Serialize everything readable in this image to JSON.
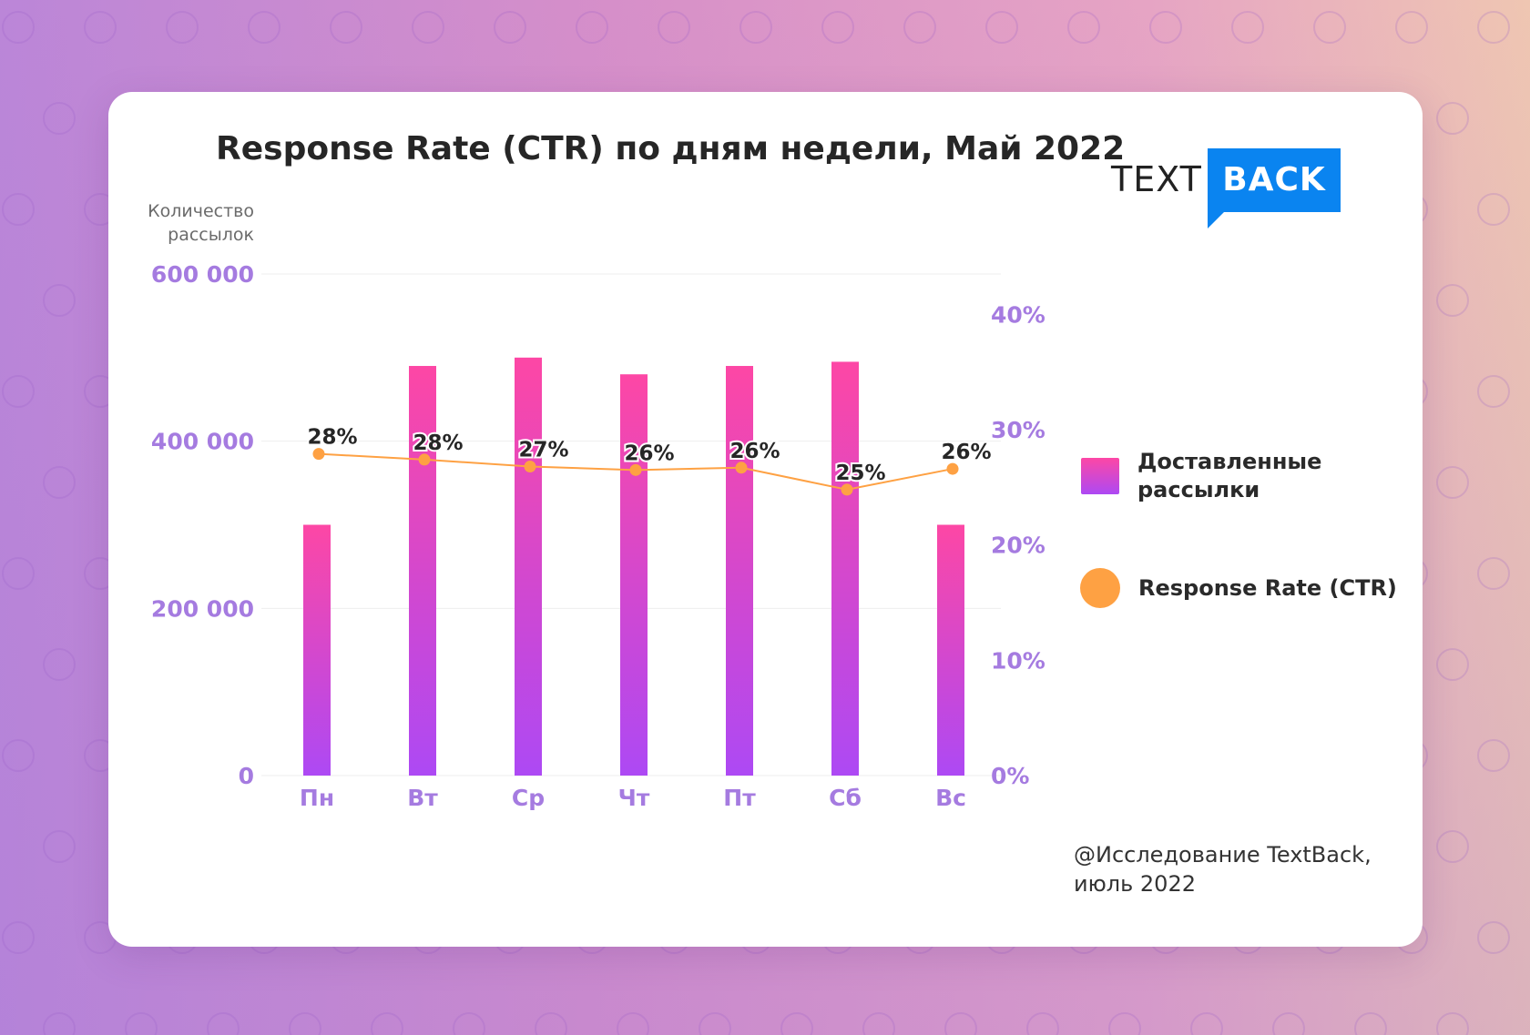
{
  "colors": {
    "bar_top": "#fd47a5",
    "bar_bottom": "#ad49f4",
    "line": "#fea143",
    "axis_label": "#a57be0",
    "grid": "#eeeeee",
    "label_dark": "#262626",
    "logo_blue": "#0a84f0"
  },
  "logo": {
    "text_part": "TEXT",
    "box_part": "BACK"
  },
  "source": {
    "line1": "@Исследование TextBack,",
    "line2": "июль 2022"
  },
  "chart_data": {
    "type": "bar",
    "title": "Response Rate (CTR) по дням недели, Май 2022",
    "ylabel": "Количество рассылок",
    "categories": [
      "Пн",
      "Вт",
      "Ср",
      "Чт",
      "Пт",
      "Сб",
      "Вс"
    ],
    "series": [
      {
        "name": "Доставленные рассылки",
        "type": "bar",
        "axis": "left",
        "values": [
          300000,
          490000,
          500000,
          480000,
          490000,
          495000,
          300000
        ]
      },
      {
        "name": "Response Rate (CTR)",
        "type": "line",
        "axis": "right",
        "values": [
          28,
          28,
          27,
          26,
          26,
          25,
          26
        ],
        "position_values": [
          27.9,
          27.4,
          26.8,
          26.5,
          26.7,
          24.8,
          26.6
        ],
        "labels": [
          "28%",
          "28%",
          "27%",
          "26%",
          "26%",
          "25%",
          "26%"
        ]
      }
    ],
    "y_left": {
      "min": 0,
      "max": 600000,
      "ticks": [
        0,
        200000,
        400000,
        600000
      ],
      "tick_labels": [
        "0",
        "200 000",
        "400 000",
        "600 000"
      ]
    },
    "y_right": {
      "min": 0,
      "max": 43.5,
      "ticks": [
        0,
        10,
        20,
        30,
        40
      ],
      "tick_labels": [
        "0%",
        "10%",
        "20%",
        "30%",
        "40%"
      ]
    },
    "grid": true,
    "legend_position": "right"
  }
}
